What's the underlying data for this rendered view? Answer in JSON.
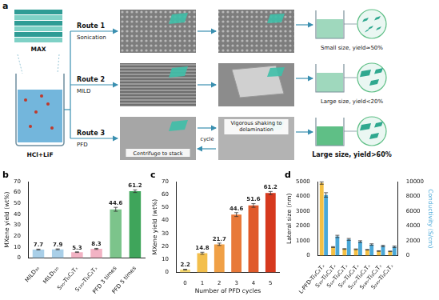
{
  "diagram": {
    "panel_label": "a",
    "source": {
      "label": "MAX",
      "solution": "HCl+LiF"
    },
    "routes": [
      {
        "name": "Route 1",
        "method": "Sonication",
        "result": "Small size, yield≈50%"
      },
      {
        "name": "Route 2",
        "method": "MILD",
        "result": "Large size, yield<20%"
      },
      {
        "name": "Route 3",
        "method": "PFD",
        "result": "Large size, yield>60%",
        "steps": [
          "Centrifuge to stack",
          "Vigorous shaking to delamination"
        ],
        "loop": "cycle"
      }
    ]
  },
  "chart_data": [
    {
      "panel_label": "b",
      "type": "bar",
      "categories": [
        "MILD₃₀",
        "MILD₁₂₀",
        "S₃₀-Ti₃C₂Tₓ",
        "S₁₂₀-Ti₃C₂Tₓ",
        "PFD 3 times",
        "PFD 5 times"
      ],
      "values": [
        7.7,
        7.9,
        5.3,
        8.3,
        44.6,
        61.2
      ],
      "errors": [
        0.4,
        0.4,
        0.3,
        0.5,
        1.8,
        1.2
      ],
      "colors": [
        "#a9cfe8",
        "#a9cfe8",
        "#f2b3c4",
        "#f2b3c4",
        "#7cc48b",
        "#3fa55b"
      ],
      "ylabel": "MXene yield (wt%)",
      "ylim": [
        0,
        70
      ],
      "yticks": [
        0,
        10,
        20,
        30,
        40,
        50,
        60,
        70
      ],
      "grid": false,
      "data_labels": true
    },
    {
      "panel_label": "c",
      "type": "bar",
      "categories": [
        "0",
        "1",
        "2",
        "3",
        "4",
        "5"
      ],
      "values": [
        2.2,
        14.8,
        21.7,
        44.6,
        51.6,
        61.2
      ],
      "errors": [
        0.3,
        0.8,
        0.9,
        1.5,
        1.4,
        1.2
      ],
      "colors": [
        "#f6d870",
        "#f3bf4c",
        "#f0a046",
        "#e8793a",
        "#e05a2b",
        "#d6391e"
      ],
      "xlabel": "Number of PFD cycles",
      "ylabel": "MXene yield (wt%)",
      "ylim": [
        0,
        70
      ],
      "yticks": [
        0,
        10,
        20,
        30,
        40,
        50,
        60,
        70
      ],
      "grid": false,
      "data_labels": true
    },
    {
      "panel_label": "d",
      "type": "bar",
      "categories": [
        "L-PFD-Ti₃C₂Tₓ",
        "S₃₀-Ti₃C₂Tₓ",
        "S₆₀-Ti₃C₂Tₓ",
        "S₉₀-Ti₃C₂Tₓ",
        "S₁₂₀-Ti₃C₂Tₓ",
        "S₁₈₀-Ti₃C₂Tₓ",
        "S₂₄₀-Ti₃C₂Tₓ"
      ],
      "series": [
        {
          "color": "#f5c043",
          "values": [
            4900,
            580,
            450,
            430,
            400,
            310,
            290
          ],
          "errors": [
            80,
            30,
            25,
            25,
            20,
            20,
            20
          ]
        },
        {
          "color": "#4aa8d8",
          "axis": "y2",
          "values": [
            8200,
            2600,
            2200,
            1900,
            1500,
            1300,
            1200
          ],
          "errors": [
            300,
            150,
            120,
            120,
            100,
            100,
            100
          ]
        }
      ],
      "ylabel": "Lateral size (nm)",
      "y2label": "Conductivity (S/cm)",
      "ylim": [
        0,
        5000
      ],
      "yticks": [
        0,
        1000,
        2000,
        3000,
        4000,
        5000
      ],
      "y2lim": [
        0,
        10000
      ],
      "y2ticks": [
        0,
        2000,
        4000,
        6000,
        8000,
        10000
      ],
      "grid": false
    }
  ]
}
